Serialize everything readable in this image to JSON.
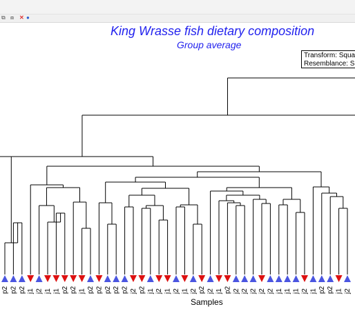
{
  "toolbar": {
    "icons": [
      "copy-icon",
      "paste-icon",
      "close-icon",
      "help-icon"
    ],
    "copy_glyph": "⧉",
    "paste_glyph": "⧈",
    "close_glyph": "✕",
    "help_glyph": "●"
  },
  "colors": {
    "title": "#2222ee",
    "branch": "#000000",
    "triangle_up": "#4a55e0",
    "triangle_down": "#dd1111"
  },
  "chart_data": {
    "type": "dendrogram",
    "title": "King Wrasse fish dietary composition",
    "subtitle": "Group average",
    "xlabel": "Samples",
    "legend_lines": [
      "Transform: Squa",
      "Resemblance: S"
    ],
    "leaves": [
      {
        "label": "p2",
        "marker": "up"
      },
      {
        "label": "p2",
        "marker": "up"
      },
      {
        "label": "p2",
        "marker": "up"
      },
      {
        "label": "j1",
        "marker": "down"
      },
      {
        "label": "j2",
        "marker": "up"
      },
      {
        "label": "j1",
        "marker": "down"
      },
      {
        "label": "j1",
        "marker": "down"
      },
      {
        "label": "p2",
        "marker": "down"
      },
      {
        "label": "p2",
        "marker": "down"
      },
      {
        "label": "j1",
        "marker": "down"
      },
      {
        "label": "p2",
        "marker": "up"
      },
      {
        "label": "p2",
        "marker": "down"
      },
      {
        "label": "p2",
        "marker": "up"
      },
      {
        "label": "p2",
        "marker": "up"
      },
      {
        "label": "p2",
        "marker": "up"
      },
      {
        "label": "j2",
        "marker": "down"
      },
      {
        "label": "p2",
        "marker": "down"
      },
      {
        "label": "j1",
        "marker": "up"
      },
      {
        "label": "j2",
        "marker": "down"
      },
      {
        "label": "j1",
        "marker": "down"
      },
      {
        "label": "j2",
        "marker": "up"
      },
      {
        "label": "j1",
        "marker": "down"
      },
      {
        "label": "j2",
        "marker": "up"
      },
      {
        "label": "p2",
        "marker": "down"
      },
      {
        "label": "j2",
        "marker": "up"
      },
      {
        "label": "j1",
        "marker": "down"
      },
      {
        "label": "p2",
        "marker": "down"
      },
      {
        "label": "j2",
        "marker": "up"
      },
      {
        "label": "j2",
        "marker": "up"
      },
      {
        "label": "j2",
        "marker": "up"
      },
      {
        "label": "j2",
        "marker": "down"
      },
      {
        "label": "j2",
        "marker": "up"
      },
      {
        "label": "j1",
        "marker": "up"
      },
      {
        "label": "j1",
        "marker": "up"
      },
      {
        "label": "j1",
        "marker": "up"
      },
      {
        "label": "j2",
        "marker": "down"
      },
      {
        "label": "j1",
        "marker": "up"
      },
      {
        "label": "p2",
        "marker": "up"
      },
      {
        "label": "p2",
        "marker": "up"
      },
      {
        "label": "j1",
        "marker": "down"
      },
      {
        "label": "j2",
        "marker": "up"
      }
    ],
    "merges": [
      {
        "id": "A1",
        "children": [
          2,
          3
        ],
        "height": 75
      },
      {
        "id": "A2",
        "children": [
          1,
          "A1"
        ],
        "height": 46
      },
      {
        "id": "B1",
        "children": [
          7,
          8
        ],
        "height": 89
      },
      {
        "id": "B2",
        "children": [
          6,
          "B1"
        ],
        "height": 76
      },
      {
        "id": "B3",
        "children": [
          5,
          "B2"
        ],
        "height": 100
      },
      {
        "id": "B4",
        "children": [
          10,
          11
        ],
        "height": 67
      },
      {
        "id": "B5",
        "children": [
          9,
          "B4"
        ],
        "height": 105
      },
      {
        "id": "B6",
        "children": [
          "B3",
          "B5"
        ],
        "height": 126
      },
      {
        "id": "B7",
        "children": [
          4,
          "B6"
        ],
        "height": 130
      },
      {
        "id": "C1",
        "children": [
          13,
          14
        ],
        "height": 73
      },
      {
        "id": "C2",
        "children": [
          12,
          "C1"
        ],
        "height": 104
      },
      {
        "id": "D1",
        "children": [
          15,
          16
        ],
        "height": 98
      },
      {
        "id": "D2",
        "children": [
          17,
          18
        ],
        "height": 96
      },
      {
        "id": "D3",
        "children": [
          19,
          20
        ],
        "height": 79
      },
      {
        "id": "D4",
        "children": [
          "D2",
          "D3"
        ],
        "height": 100
      },
      {
        "id": "D5",
        "children": [
          "D1",
          "D4"
        ],
        "height": 115
      },
      {
        "id": "E1",
        "children": [
          21,
          22
        ],
        "height": 98
      },
      {
        "id": "E2",
        "children": [
          23,
          24
        ],
        "height": 73
      },
      {
        "id": "E3",
        "children": [
          "E1",
          "E2"
        ],
        "height": 101
      },
      {
        "id": "E4",
        "children": [
          "D5",
          "E3"
        ],
        "height": 125
      },
      {
        "id": "F1",
        "children": [
          28,
          29
        ],
        "height": 100
      },
      {
        "id": "F2",
        "children": [
          27,
          "F1"
        ],
        "height": 104
      },
      {
        "id": "F3",
        "children": [
          26,
          "F2"
        ],
        "height": 107
      },
      {
        "id": "F4",
        "children": [
          31,
          32
        ],
        "height": 103
      },
      {
        "id": "F5",
        "children": [
          30,
          "F4"
        ],
        "height": 109
      },
      {
        "id": "F6",
        "children": [
          "F3",
          "F5"
        ],
        "height": 115
      },
      {
        "id": "F7",
        "children": [
          25,
          "F6"
        ],
        "height": 121
      },
      {
        "id": "F8",
        "children": [
          33,
          34
        ],
        "height": 101
      },
      {
        "id": "F9",
        "children": [
          35,
          36
        ],
        "height": 90
      },
      {
        "id": "F10",
        "children": [
          "F8",
          "F9"
        ],
        "height": 109
      },
      {
        "id": "F11",
        "children": [
          "F7",
          "F10"
        ],
        "height": 126
      },
      {
        "id": "G1",
        "children": [
          40,
          41
        ],
        "height": 96
      },
      {
        "id": "G2",
        "children": [
          39,
          "G1"
        ],
        "height": 113
      },
      {
        "id": "G3",
        "children": [
          38,
          "G2"
        ],
        "height": 118
      },
      {
        "id": "G4",
        "children": [
          37,
          "G3"
        ],
        "height": 127
      },
      {
        "id": "H1",
        "children": [
          "C2",
          "E4"
        ],
        "height": 134
      },
      {
        "id": "H2",
        "children": [
          "H1",
          "F11"
        ],
        "height": 141
      },
      {
        "id": "H3",
        "children": [
          "H2",
          "G4"
        ],
        "height": 149
      },
      {
        "id": "H4",
        "children": [
          "B7",
          "H3"
        ],
        "height": 157
      },
      {
        "id": "H5",
        "children": [
          "A2",
          "H4"
        ],
        "height": 171
      },
      {
        "id": "H6",
        "children": [
          "H5",
          "root-right"
        ],
        "height": 231
      },
      {
        "id": "H7",
        "children": [
          "H6",
          "root-right-2"
        ],
        "height": 285
      }
    ],
    "height_range": [
      0,
      300
    ]
  }
}
